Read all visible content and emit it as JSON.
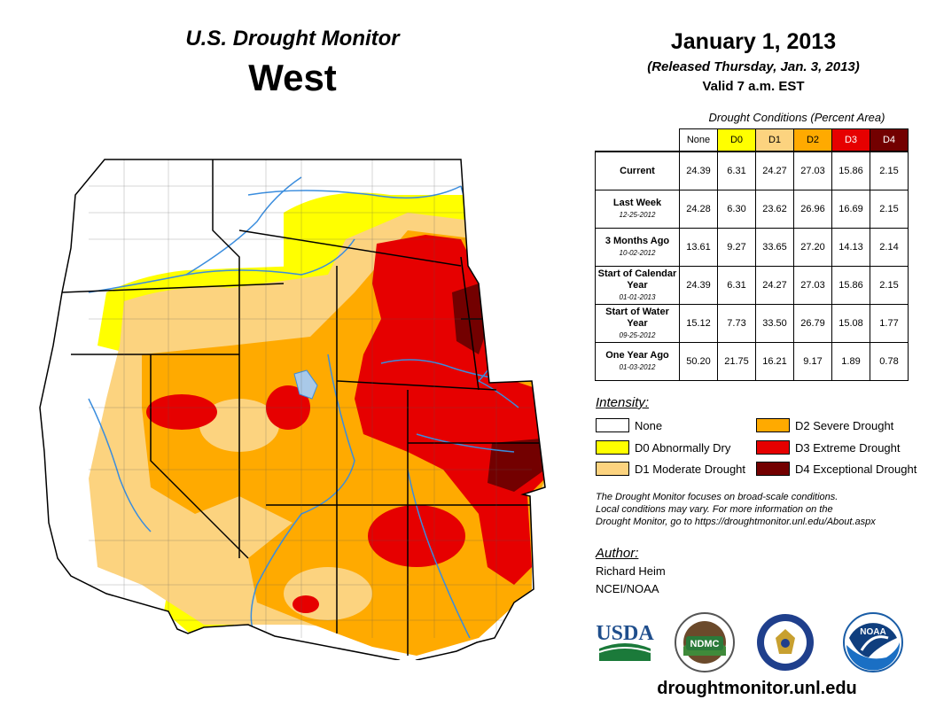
{
  "header": {
    "title": "U.S. Drought Monitor",
    "region": "West",
    "date": "January 1, 2013",
    "released": "(Released Thursday, Jan. 3, 2013)",
    "valid": "Valid 7 a.m. EST"
  },
  "table": {
    "caption": "Drought Conditions (Percent Area)",
    "columns": [
      "None",
      "D0",
      "D1",
      "D2",
      "D3",
      "D4"
    ],
    "rows": [
      {
        "label": "Current",
        "date": "",
        "values": [
          "24.39",
          "6.31",
          "24.27",
          "27.03",
          "15.86",
          "2.15"
        ]
      },
      {
        "label": "Last Week",
        "date": "12-25-2012",
        "values": [
          "24.28",
          "6.30",
          "23.62",
          "26.96",
          "16.69",
          "2.15"
        ]
      },
      {
        "label": "3 Months Ago",
        "date": "10-02-2012",
        "values": [
          "13.61",
          "9.27",
          "33.65",
          "27.20",
          "14.13",
          "2.14"
        ]
      },
      {
        "label": "Start of Calendar Year",
        "date": "01-01-2013",
        "values": [
          "24.39",
          "6.31",
          "24.27",
          "27.03",
          "15.86",
          "2.15"
        ]
      },
      {
        "label": "Start of Water Year",
        "date": "09-25-2012",
        "values": [
          "15.12",
          "7.73",
          "33.50",
          "26.79",
          "15.08",
          "1.77"
        ]
      },
      {
        "label": "One Year Ago",
        "date": "01-03-2012",
        "values": [
          "50.20",
          "21.75",
          "16.21",
          "9.17",
          "1.89",
          "0.78"
        ]
      }
    ]
  },
  "legend": {
    "heading": "Intensity:",
    "items": [
      {
        "label": "None",
        "color": "#ffffff"
      },
      {
        "label": "D0 Abnormally Dry",
        "color": "#ffff00"
      },
      {
        "label": "D1 Moderate Drought",
        "color": "#fcd37f"
      },
      {
        "label": "D2 Severe Drought",
        "color": "#ffaa00"
      },
      {
        "label": "D3 Extreme Drought",
        "color": "#e60000"
      },
      {
        "label": "D4 Exceptional Drought",
        "color": "#730000"
      }
    ]
  },
  "note": {
    "line1": "The Drought Monitor focuses on broad-scale conditions.",
    "line2": "Local conditions may vary. For more information on the",
    "line3": "Drought Monitor, go to https://droughtmonitor.unl.edu/About.aspx"
  },
  "author": {
    "heading": "Author:",
    "name": "Richard Heim",
    "org": "NCEI/NOAA"
  },
  "logos": {
    "usda": "USDA",
    "ndmc": "NDMC",
    "noaa": "NOAA"
  },
  "footer": {
    "site": "droughtmonitor.unl.edu"
  },
  "colors": {
    "none": "#ffffff",
    "d0": "#ffff00",
    "d1": "#fcd37f",
    "d2": "#ffaa00",
    "d3": "#e60000",
    "d4": "#730000",
    "water": "#3a8dde"
  }
}
